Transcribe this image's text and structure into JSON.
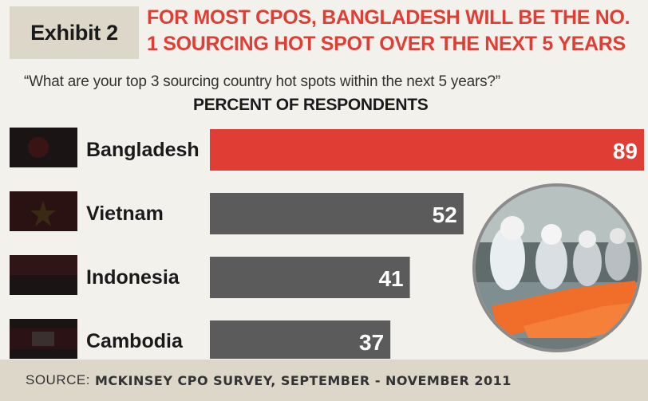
{
  "header": {
    "exhibit_label": "Exhibit 2",
    "headline": "FOR MOST CPOS, BANGLADESH WILL BE THE NO. 1 SOURCING HOT SPOT OVER THE NEXT 5 YEARS"
  },
  "question": "“What are your top 3 sourcing country hot spots within the next 5 years?”",
  "footer": {
    "source_label": "SOURCE:",
    "source_value": "MCKINSEY CPO SURVEY, SEPTEMBER - NOVEMBER 2011"
  },
  "colors": {
    "highlight": "#e03e35",
    "bar": "#5b5b5b",
    "accent_text": "#e03e35"
  },
  "photo": {
    "icon": "garment-workers-photo"
  },
  "chart_data": {
    "type": "bar",
    "orientation": "horizontal",
    "title": "PERCENT OF RESPONDENTS",
    "categories": [
      "Bangladesh",
      "Vietnam",
      "Indonesia",
      "Cambodia"
    ],
    "values": [
      89,
      52,
      41,
      37
    ],
    "highlight_index": 0,
    "xlim": [
      0,
      89
    ],
    "grid": false,
    "legend": "none"
  }
}
